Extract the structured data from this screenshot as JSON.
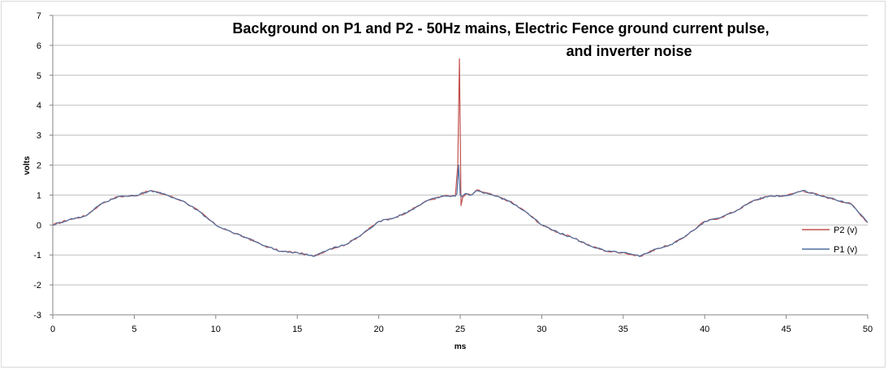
{
  "chart_data": {
    "type": "line",
    "title_line1": "Background on P1 and P2 - 50Hz mains, Electric Fence ground current pulse,",
    "title_line2": "and inverter noise",
    "xlabel": "ms",
    "ylabel": "volts",
    "xlim": [
      0,
      50
    ],
    "ylim": [
      -3,
      7
    ],
    "x_ticks": [
      "0",
      "5",
      "10",
      "15",
      "20",
      "25",
      "30",
      "35",
      "40",
      "45",
      "50"
    ],
    "y_ticks": [
      "7",
      "6",
      "5",
      "4",
      "3",
      "2",
      "1",
      "0",
      "-1",
      "-2",
      "-3"
    ],
    "grid": "horizontal",
    "legend_position": "right",
    "series": [
      {
        "name": "P2 (v)",
        "color": "#c0504d",
        "points": [
          [
            0,
            0
          ],
          [
            1,
            0.18
          ],
          [
            2,
            0.3
          ],
          [
            3,
            0.72
          ],
          [
            4,
            0.95
          ],
          [
            5,
            0.97
          ],
          [
            6,
            1.15
          ],
          [
            7,
            1.0
          ],
          [
            8,
            0.8
          ],
          [
            9,
            0.45
          ],
          [
            10,
            0.0
          ],
          [
            11,
            -0.25
          ],
          [
            12,
            -0.45
          ],
          [
            13,
            -0.7
          ],
          [
            14,
            -0.88
          ],
          [
            15,
            -0.92
          ],
          [
            16,
            -1.05
          ],
          [
            17,
            -0.8
          ],
          [
            18,
            -0.65
          ],
          [
            19,
            -0.3
          ],
          [
            20,
            0.12
          ],
          [
            21,
            0.25
          ],
          [
            22,
            0.5
          ],
          [
            23,
            0.82
          ],
          [
            24,
            0.97
          ],
          [
            24.7,
            0.96
          ],
          [
            24.85,
            2.0
          ],
          [
            24.95,
            5.55
          ],
          [
            25.05,
            0.65
          ],
          [
            25.15,
            0.92
          ],
          [
            25.4,
            1.05
          ],
          [
            25.7,
            1.0
          ],
          [
            26,
            1.17
          ],
          [
            27,
            1.0
          ],
          [
            28,
            0.8
          ],
          [
            29,
            0.45
          ],
          [
            30,
            0.0
          ],
          [
            31,
            -0.25
          ],
          [
            32,
            -0.45
          ],
          [
            33,
            -0.7
          ],
          [
            34,
            -0.88
          ],
          [
            35,
            -0.92
          ],
          [
            36,
            -1.05
          ],
          [
            37,
            -0.8
          ],
          [
            38,
            -0.65
          ],
          [
            39,
            -0.3
          ],
          [
            40,
            0.12
          ],
          [
            41,
            0.25
          ],
          [
            42,
            0.5
          ],
          [
            43,
            0.82
          ],
          [
            44,
            0.97
          ],
          [
            45,
            0.98
          ],
          [
            46,
            1.15
          ],
          [
            47,
            1.0
          ],
          [
            48,
            0.85
          ],
          [
            49,
            0.7
          ],
          [
            50,
            0.08
          ]
        ]
      },
      {
        "name": "P1 (v)",
        "color": "#4f6f9f",
        "points": [
          [
            0,
            0
          ],
          [
            1,
            0.18
          ],
          [
            2,
            0.3
          ],
          [
            3,
            0.72
          ],
          [
            4,
            0.95
          ],
          [
            5,
            0.97
          ],
          [
            6,
            1.15
          ],
          [
            7,
            1.0
          ],
          [
            8,
            0.8
          ],
          [
            9,
            0.45
          ],
          [
            10,
            0.0
          ],
          [
            11,
            -0.25
          ],
          [
            12,
            -0.45
          ],
          [
            13,
            -0.7
          ],
          [
            14,
            -0.88
          ],
          [
            15,
            -0.92
          ],
          [
            16,
            -1.05
          ],
          [
            17,
            -0.8
          ],
          [
            18,
            -0.65
          ],
          [
            19,
            -0.3
          ],
          [
            20,
            0.12
          ],
          [
            21,
            0.25
          ],
          [
            22,
            0.5
          ],
          [
            23,
            0.82
          ],
          [
            24,
            0.97
          ],
          [
            24.7,
            0.97
          ],
          [
            24.8,
            1.05
          ],
          [
            24.9,
            2.0
          ],
          [
            25.0,
            1.0
          ],
          [
            25.1,
            0.95
          ],
          [
            25.3,
            1.05
          ],
          [
            25.7,
            1.0
          ],
          [
            26,
            1.15
          ],
          [
            27,
            1.0
          ],
          [
            28,
            0.8
          ],
          [
            29,
            0.45
          ],
          [
            30,
            0.0
          ],
          [
            31,
            -0.25
          ],
          [
            32,
            -0.45
          ],
          [
            33,
            -0.7
          ],
          [
            34,
            -0.88
          ],
          [
            35,
            -0.92
          ],
          [
            36,
            -1.05
          ],
          [
            37,
            -0.8
          ],
          [
            38,
            -0.65
          ],
          [
            39,
            -0.3
          ],
          [
            40,
            0.12
          ],
          [
            41,
            0.25
          ],
          [
            42,
            0.5
          ],
          [
            43,
            0.82
          ],
          [
            44,
            0.97
          ],
          [
            45,
            0.98
          ],
          [
            46,
            1.15
          ],
          [
            47,
            1.0
          ],
          [
            48,
            0.85
          ],
          [
            49,
            0.7
          ],
          [
            50,
            0.08
          ]
        ]
      }
    ]
  }
}
